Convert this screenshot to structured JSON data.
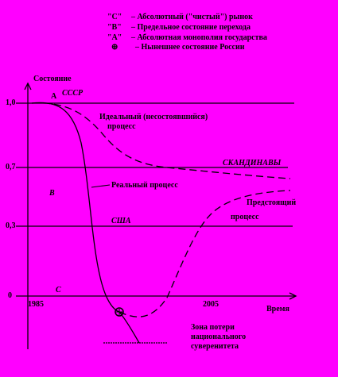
{
  "legend": [
    {
      "symbol": "\"С\"",
      "text": "– Абсолютный (\"чистый\") рынок"
    },
    {
      "symbol": "\"В\"",
      "text": "– Предельное состояние перехода"
    },
    {
      "symbol": "\"А\"",
      "text": "– Абсолютная монополия государства"
    },
    {
      "symbol": "⊕",
      "text": "– Нынешнее состояние России"
    }
  ],
  "axes": {
    "y_label": "Состояние",
    "x_label": "Время",
    "y_ticks": [
      "1,0",
      "0,7",
      "0,3",
      "0"
    ],
    "x_ticks": [
      "1985",
      "2005"
    ]
  },
  "labels": {
    "point_a": "А",
    "ussr": "СССР",
    "ideal": "Идеальный (несостоявшийся)",
    "ideal2": "процесс",
    "scandinavia": "СКАНДИНАВЫ",
    "point_b": "В",
    "real": "Реальный процесс",
    "usa": "США",
    "future": "Предстоящий",
    "future2": "процесс",
    "point_c": "С",
    "zone": [
      "Зона потери",
      "национального",
      "суверенитета"
    ]
  }
}
